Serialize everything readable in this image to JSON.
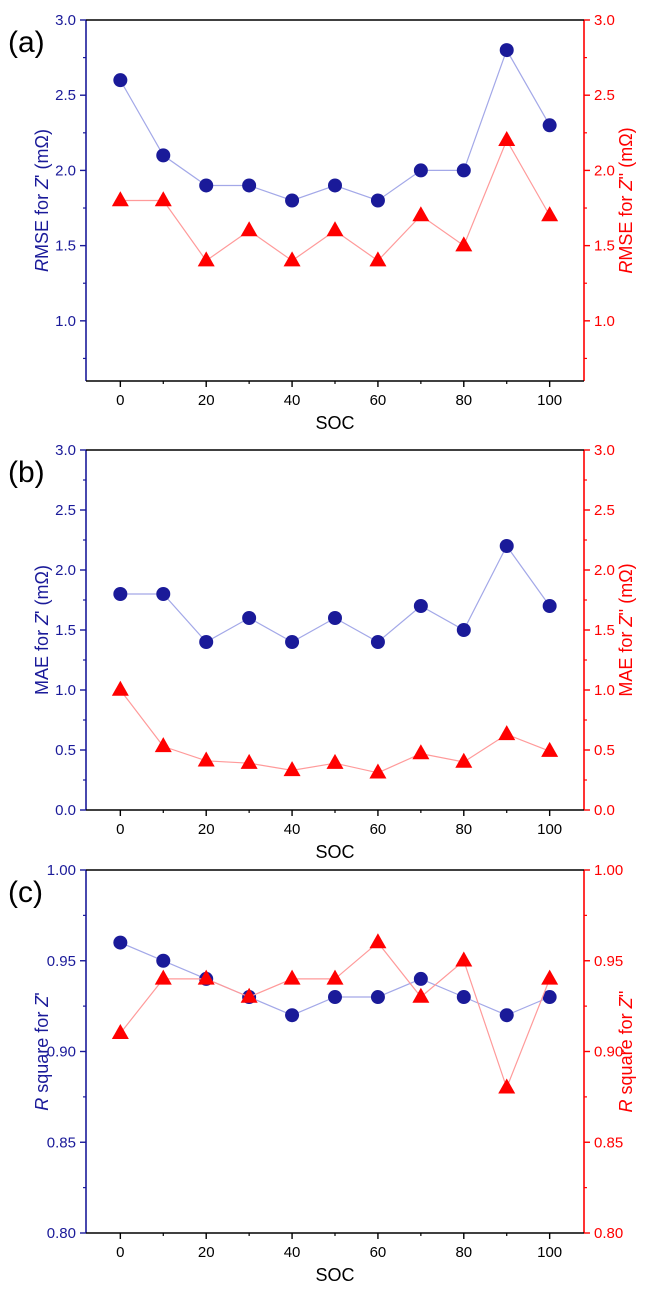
{
  "chart_data": [
    {
      "type": "line",
      "panel_label": "(a)",
      "xlabel": "SOC",
      "ylabel_left": "RMSE for Z' (mΩ)",
      "ylabel_right": "RMSE for Z'' (mΩ)",
      "xlim": [
        -8,
        108
      ],
      "ylim_left": [
        0.6,
        3.0
      ],
      "ylim_right": [
        0.6,
        3.0
      ],
      "x": [
        0,
        10,
        20,
        30,
        40,
        50,
        60,
        70,
        80,
        90,
        100
      ],
      "x_ticks": [
        0,
        20,
        40,
        60,
        80,
        100
      ],
      "y_ticks": [
        "1.0",
        "1.5",
        "2.0",
        "2.5",
        "3.0"
      ],
      "y_tick_values": [
        1.0,
        1.5,
        2.0,
        2.5,
        3.0
      ],
      "series": [
        {
          "axis": "left",
          "marker": "circle",
          "color": "#1a1a99",
          "line_color": "#a3a8e8",
          "values": [
            2.6,
            2.1,
            1.9,
            1.9,
            1.8,
            1.9,
            1.8,
            2.0,
            2.0,
            2.8,
            2.3
          ]
        },
        {
          "axis": "right",
          "marker": "triangle",
          "color": "#ff0000",
          "line_color": "#ff9a9a",
          "values": [
            1.8,
            1.8,
            1.4,
            1.6,
            1.4,
            1.6,
            1.4,
            1.7,
            1.5,
            2.2,
            1.7
          ]
        }
      ],
      "left_color": "#1a1a99",
      "right_color": "#ff0000",
      "grid": false
    },
    {
      "type": "line",
      "panel_label": "(b)",
      "xlabel": "SOC",
      "ylabel_left": "MAE for Z' (mΩ)",
      "ylabel_right": "MAE for Z'' (mΩ)",
      "xlim": [
        -8,
        108
      ],
      "ylim_left": [
        0.0,
        3.0
      ],
      "ylim_right": [
        0.0,
        3.0
      ],
      "x": [
        0,
        10,
        20,
        30,
        40,
        50,
        60,
        70,
        80,
        90,
        100
      ],
      "x_ticks": [
        0,
        20,
        40,
        60,
        80,
        100
      ],
      "y_ticks": [
        "0.0",
        "0.5",
        "1.0",
        "1.5",
        "2.0",
        "2.5",
        "3.0"
      ],
      "y_tick_values": [
        0.0,
        0.5,
        1.0,
        1.5,
        2.0,
        2.5,
        3.0
      ],
      "series": [
        {
          "axis": "left",
          "marker": "circle",
          "color": "#1a1a99",
          "line_color": "#a3a8e8",
          "values": [
            1.8,
            1.8,
            1.4,
            1.6,
            1.4,
            1.6,
            1.4,
            1.7,
            1.5,
            2.2,
            1.7
          ]
        },
        {
          "axis": "right",
          "marker": "triangle",
          "color": "#ff0000",
          "line_color": "#ff9a9a",
          "values": [
            1.0,
            0.53,
            0.41,
            0.39,
            0.33,
            0.39,
            0.31,
            0.47,
            0.4,
            0.63,
            0.49
          ]
        }
      ],
      "left_color": "#1a1a99",
      "right_color": "#ff0000",
      "grid": false
    },
    {
      "type": "line",
      "panel_label": "(c)",
      "xlabel": "SOC",
      "ylabel_left": "R square for Z'",
      "ylabel_right": "R square for Z''",
      "xlim": [
        -8,
        108
      ],
      "ylim_left": [
        0.8,
        1.0
      ],
      "ylim_right": [
        0.8,
        1.0
      ],
      "x": [
        0,
        10,
        20,
        30,
        40,
        50,
        60,
        70,
        80,
        90,
        100
      ],
      "x_ticks": [
        0,
        20,
        40,
        60,
        80,
        100
      ],
      "y_ticks": [
        "0.80",
        "0.85",
        "0.90",
        "0.95",
        "1.00"
      ],
      "y_tick_values": [
        0.8,
        0.85,
        0.9,
        0.95,
        1.0
      ],
      "series": [
        {
          "axis": "left",
          "marker": "circle",
          "color": "#1a1a99",
          "line_color": "#a3a8e8",
          "values": [
            0.96,
            0.95,
            0.94,
            0.93,
            0.92,
            0.93,
            0.93,
            0.94,
            0.93,
            0.92,
            0.93
          ]
        },
        {
          "axis": "right",
          "marker": "triangle",
          "color": "#ff0000",
          "line_color": "#ff9a9a",
          "values": [
            0.91,
            0.94,
            0.94,
            0.93,
            0.94,
            0.94,
            0.96,
            0.93,
            0.95,
            0.88,
            0.94
          ]
        }
      ],
      "left_color": "#1a1a99",
      "right_color": "#ff0000",
      "grid": false
    }
  ]
}
